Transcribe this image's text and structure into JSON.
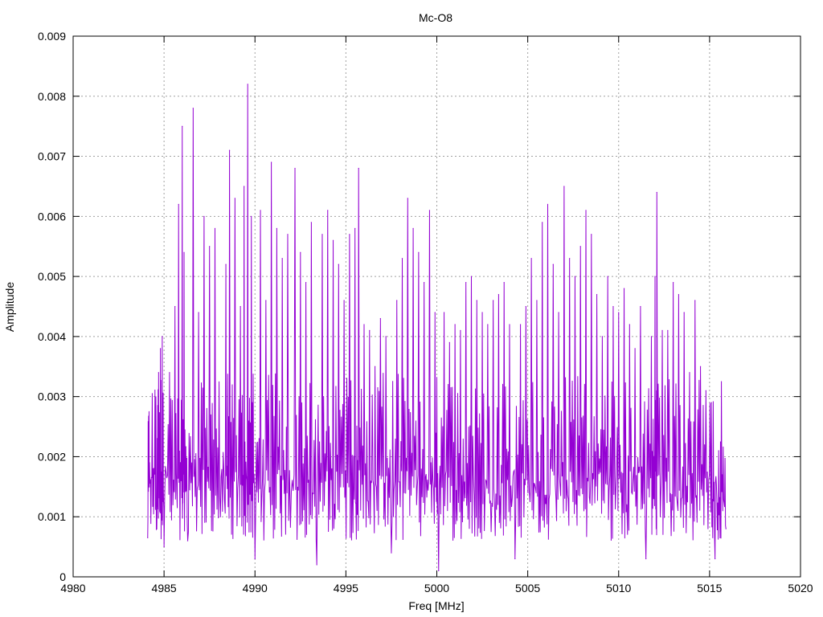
{
  "chart_data": {
    "type": "line",
    "title": "Mc-O8",
    "xlabel": "Freq [MHz]",
    "ylabel": "Amplitude",
    "xlim": [
      4980,
      5020
    ],
    "ylim": [
      0,
      0.009
    ],
    "x_ticks": [
      4980,
      4985,
      4990,
      4995,
      5000,
      5005,
      5010,
      5015,
      5020
    ],
    "x_tick_labels": [
      "4980",
      "4985",
      "4990",
      "4995",
      "5000",
      "5005",
      "5010",
      "5015",
      "5020"
    ],
    "y_ticks": [
      0,
      0.001,
      0.002,
      0.003,
      0.004,
      0.005,
      0.006,
      0.007,
      0.008,
      0.009
    ],
    "y_tick_labels": [
      "0",
      "0.001",
      "0.002",
      "0.003",
      "0.004",
      "0.005",
      "0.006",
      "0.007",
      "0.008",
      "0.009"
    ],
    "grid": true,
    "series": [
      {
        "color": "#9400d3",
        "peaks": [
          [
            4984.1,
            0.00065
          ],
          [
            4984.2,
            0.0019
          ],
          [
            4984.4,
            0.0018
          ],
          [
            4984.6,
            0.0008
          ],
          [
            4984.7,
            0.0034
          ],
          [
            4984.8,
            0.0038
          ],
          [
            4984.9,
            0.004
          ],
          [
            4985.0,
            0.0005
          ],
          [
            4985.3,
            0.0034
          ],
          [
            4985.6,
            0.0045
          ],
          [
            4985.8,
            0.0062
          ],
          [
            4986.0,
            0.0075
          ],
          [
            4986.1,
            0.0054
          ],
          [
            4986.3,
            0.0006
          ],
          [
            4986.6,
            0.0078
          ],
          [
            4986.9,
            0.0044
          ],
          [
            4987.2,
            0.006
          ],
          [
            4987.5,
            0.0055
          ],
          [
            4987.8,
            0.0058
          ],
          [
            4988.1,
            0.001
          ],
          [
            4988.4,
            0.0052
          ],
          [
            4988.6,
            0.0071
          ],
          [
            4988.9,
            0.0063
          ],
          [
            4989.2,
            0.0045
          ],
          [
            4989.4,
            0.0065
          ],
          [
            4989.6,
            0.0082
          ],
          [
            4989.8,
            0.006
          ],
          [
            4990.0,
            0.0003
          ],
          [
            4990.3,
            0.0061
          ],
          [
            4990.6,
            0.0046
          ],
          [
            4990.9,
            0.0069
          ],
          [
            4991.2,
            0.0058
          ],
          [
            4991.5,
            0.0053
          ],
          [
            4991.8,
            0.0057
          ],
          [
            4992.2,
            0.0068
          ],
          [
            4992.5,
            0.0054
          ],
          [
            4992.8,
            0.0049
          ],
          [
            4993.1,
            0.0059
          ],
          [
            4993.4,
            0.0002
          ],
          [
            4993.7,
            0.0057
          ],
          [
            4994.0,
            0.0061
          ],
          [
            4994.3,
            0.0056
          ],
          [
            4994.6,
            0.0052
          ],
          [
            4994.9,
            0.0046
          ],
          [
            4995.2,
            0.0057
          ],
          [
            4995.5,
            0.0058
          ],
          [
            4995.7,
            0.0068
          ],
          [
            4996.0,
            0.0042
          ],
          [
            4996.3,
            0.0041
          ],
          [
            4996.6,
            0.0035
          ],
          [
            4996.9,
            0.0043
          ],
          [
            4997.2,
            0.004
          ],
          [
            4997.5,
            0.0004
          ],
          [
            4997.8,
            0.0046
          ],
          [
            4998.1,
            0.0053
          ],
          [
            4998.4,
            0.0063
          ],
          [
            4998.7,
            0.0058
          ],
          [
            4999.0,
            0.0054
          ],
          [
            4999.3,
            0.0049
          ],
          [
            4999.6,
            0.0061
          ],
          [
            4999.9,
            0.0044
          ],
          [
            5000.1,
            0.0001
          ],
          [
            5000.4,
            0.0044
          ],
          [
            5000.7,
            0.0039
          ],
          [
            5001.0,
            0.0042
          ],
          [
            5001.3,
            0.0041
          ],
          [
            5001.6,
            0.0049
          ],
          [
            5001.9,
            0.005
          ],
          [
            5002.2,
            0.0046
          ],
          [
            5002.5,
            0.0044
          ],
          [
            5002.8,
            0.0042
          ],
          [
            5003.1,
            0.0046
          ],
          [
            5003.4,
            0.0047
          ],
          [
            5003.7,
            0.0049
          ],
          [
            5004.0,
            0.0042
          ],
          [
            5004.3,
            0.0003
          ],
          [
            5004.6,
            0.0042
          ],
          [
            5004.9,
            0.0045
          ],
          [
            5005.2,
            0.0053
          ],
          [
            5005.5,
            0.0046
          ],
          [
            5005.8,
            0.0059
          ],
          [
            5006.1,
            0.0062
          ],
          [
            5006.4,
            0.0052
          ],
          [
            5006.7,
            0.0044
          ],
          [
            5007.0,
            0.0065
          ],
          [
            5007.3,
            0.0053
          ],
          [
            5007.6,
            0.005
          ],
          [
            5007.9,
            0.0055
          ],
          [
            5008.2,
            0.0061
          ],
          [
            5008.5,
            0.0057
          ],
          [
            5008.8,
            0.0047
          ],
          [
            5009.1,
            0.004
          ],
          [
            5009.4,
            0.005
          ],
          [
            5009.7,
            0.0045
          ],
          [
            5010.0,
            0.0044
          ],
          [
            5010.3,
            0.0048
          ],
          [
            5010.6,
            0.0042
          ],
          [
            5010.9,
            0.0038
          ],
          [
            5011.2,
            0.0045
          ],
          [
            5011.5,
            0.0003
          ],
          [
            5011.8,
            0.004
          ],
          [
            5012.0,
            0.005
          ],
          [
            5012.1,
            0.0064
          ],
          [
            5012.4,
            0.0041
          ],
          [
            5012.7,
            0.0041
          ],
          [
            5013.0,
            0.0049
          ],
          [
            5013.3,
            0.0047
          ],
          [
            5013.6,
            0.0044
          ],
          [
            5013.9,
            0.0034
          ],
          [
            5014.2,
            0.0046
          ],
          [
            5014.5,
            0.0035
          ],
          [
            5014.8,
            0.0031
          ],
          [
            5015.1,
            0.0029
          ],
          [
            5015.3,
            0.0003
          ],
          [
            5015.5,
            0.0021
          ],
          [
            5015.7,
            0.0017
          ],
          [
            5015.9,
            0.0008
          ]
        ]
      }
    ]
  }
}
